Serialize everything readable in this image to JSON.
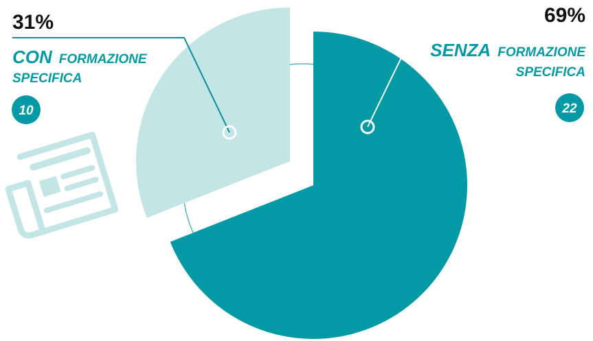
{
  "colors": {
    "dark_teal": "#039aa6",
    "light_teal": "#c4e5e6",
    "text_dark": "#111111",
    "leader": "#0a8d99"
  },
  "icon": "newspaper-icon",
  "chart_data": {
    "type": "pie",
    "slices": [
      {
        "percent_label": "31%",
        "value": 31,
        "label_emph": "CON",
        "label_rest": "FORMAZIONE",
        "label_line2": "SPECIFICA",
        "count": "10",
        "color": "#c4e5e6"
      },
      {
        "percent_label": "69%",
        "value": 69,
        "label_emph": "SENZA",
        "label_rest": "FORMAZIONE",
        "label_line2": "SPECIFICA",
        "count": "22",
        "color": "#039aa6"
      }
    ]
  }
}
